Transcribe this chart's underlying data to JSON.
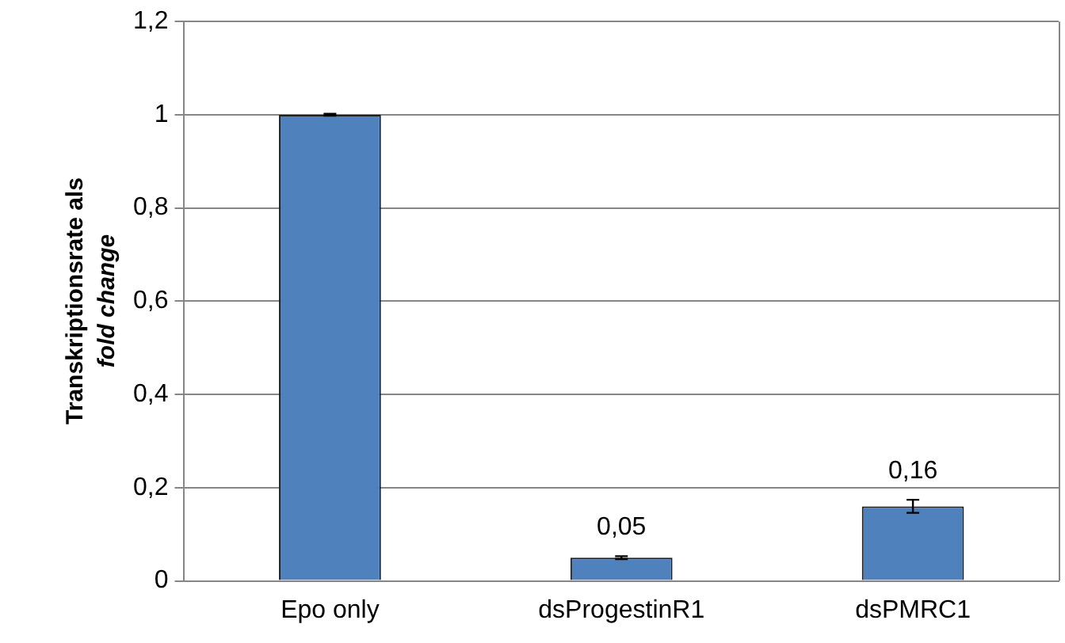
{
  "chart_data": {
    "type": "bar",
    "ylabel": "Transkriptionsrate als\nfold change",
    "categories": [
      "Epo only",
      "dsProgestinR1",
      "dsPMRC1"
    ],
    "values": [
      1,
      0.05,
      0.16
    ],
    "errors": [
      0.002,
      0.003,
      0.014
    ],
    "value_labels": [
      null,
      "0,05",
      "0,16"
    ],
    "color": "#4f81bd",
    "ylim": [
      0,
      1.2
    ],
    "yticks": [
      0,
      {
        "value": 0.2,
        "label": "0,2"
      },
      {
        "value": 0.4,
        "label": "0,4"
      },
      {
        "value": 0.6,
        "label": "0,6"
      },
      {
        "value": 0.8,
        "label": "0,8"
      },
      1,
      {
        "value": 1.2,
        "label": "1,2"
      }
    ],
    "grid": "y"
  }
}
